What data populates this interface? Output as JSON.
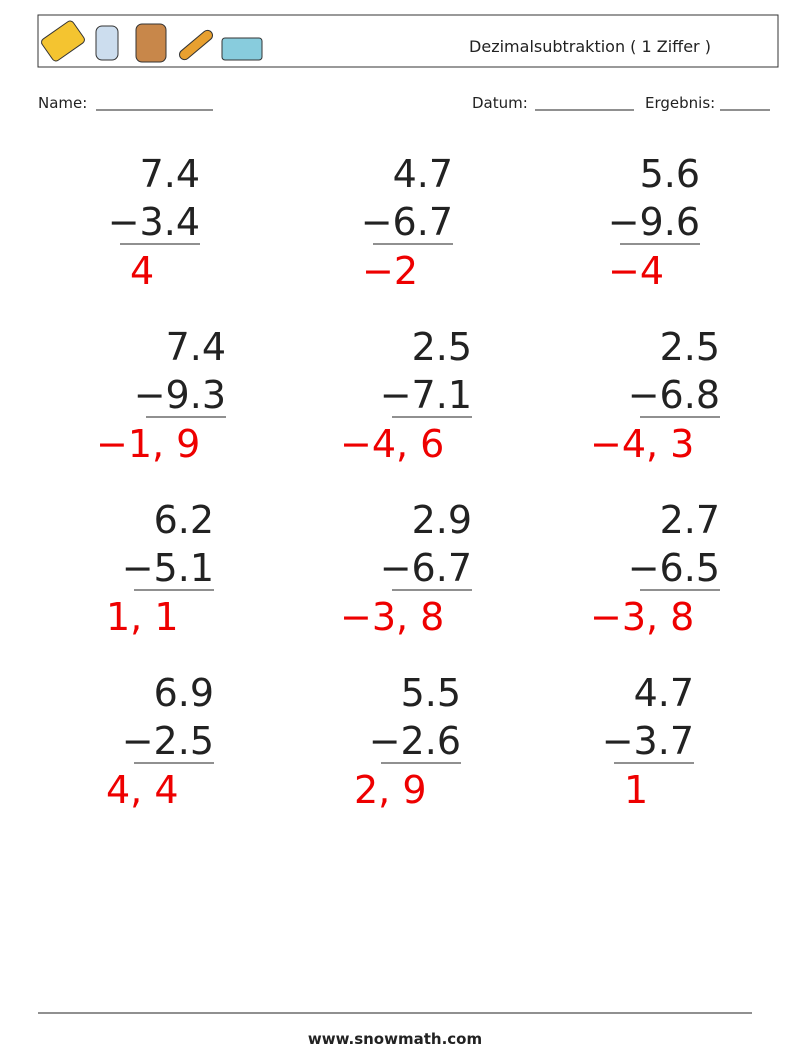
{
  "header": {
    "title": "Dezimalsubtraktion ( 1 Ziffer )"
  },
  "fields": {
    "name": "Name:",
    "date": "Datum:",
    "result": "Ergebnis:"
  },
  "problems": [
    {
      "top": "7.4",
      "bottom": "−3.4",
      "answer": "4"
    },
    {
      "top": "4.7",
      "bottom": "−6.7",
      "answer": "−2"
    },
    {
      "top": "5.6",
      "bottom": "−9.6",
      "answer": "−4"
    },
    {
      "top": "7.4",
      "bottom": "−9.3",
      "answer": "−1, 9"
    },
    {
      "top": "2.5",
      "bottom": "−7.1",
      "answer": "−4, 6"
    },
    {
      "top": "2.5",
      "bottom": "−6.8",
      "answer": "−4, 3"
    },
    {
      "top": "6.2",
      "bottom": "−5.1",
      "answer": "1, 1"
    },
    {
      "top": "2.9",
      "bottom": "−6.7",
      "answer": "−3, 8"
    },
    {
      "top": "2.7",
      "bottom": "−6.5",
      "answer": "−3, 8"
    },
    {
      "top": "6.9",
      "bottom": "−2.5",
      "answer": "4, 4"
    },
    {
      "top": "5.5",
      "bottom": "−2.6",
      "answer": "2, 9"
    },
    {
      "top": "4.7",
      "bottom": "−3.7",
      "answer": "1"
    }
  ],
  "footer": {
    "site": "www.snowmath.com"
  }
}
